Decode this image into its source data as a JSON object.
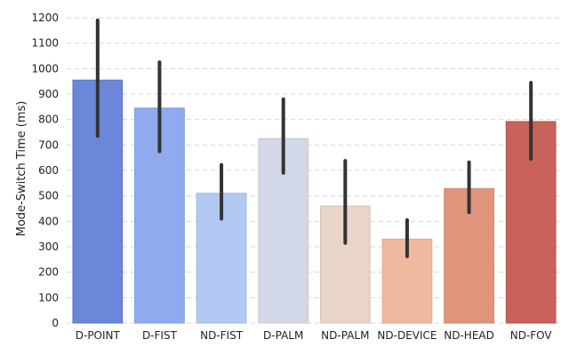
{
  "chart_data": {
    "type": "bar",
    "title": "",
    "xlabel": "",
    "ylabel": "Mode-Switch Time (ms)",
    "ylim": [
      0,
      1200
    ],
    "yticks": [
      0,
      100,
      200,
      300,
      400,
      500,
      600,
      700,
      800,
      900,
      1000,
      1100,
      1200
    ],
    "grid": true,
    "categories": [
      "D-POINT",
      "D-FIST",
      "ND-FIST",
      "D-PALM",
      "ND-PALM",
      "ND-DEVICE",
      "ND-HEAD",
      "ND-FOV"
    ],
    "values": [
      955,
      845,
      510,
      725,
      460,
      330,
      528,
      792
    ],
    "error_low": [
      735,
      675,
      410,
      590,
      315,
      262,
      435,
      645
    ],
    "error_high": [
      1190,
      1025,
      622,
      880,
      638,
      405,
      632,
      945
    ],
    "colors": [
      "#6b87d9",
      "#8fabed",
      "#b1c8f2",
      "#d2d8e7",
      "#e8d4c9",
      "#efb9a0",
      "#e0957c",
      "#c9625a"
    ],
    "bar_edge_colors": [
      "#5a76c8",
      "#7d99dc",
      "#a0b7e1",
      "#c1c7d6",
      "#d7c3b8",
      "#dea890",
      "#cf846b",
      "#b85149"
    ],
    "error_color": "#333333",
    "grid_color": "#d6d6d6"
  }
}
